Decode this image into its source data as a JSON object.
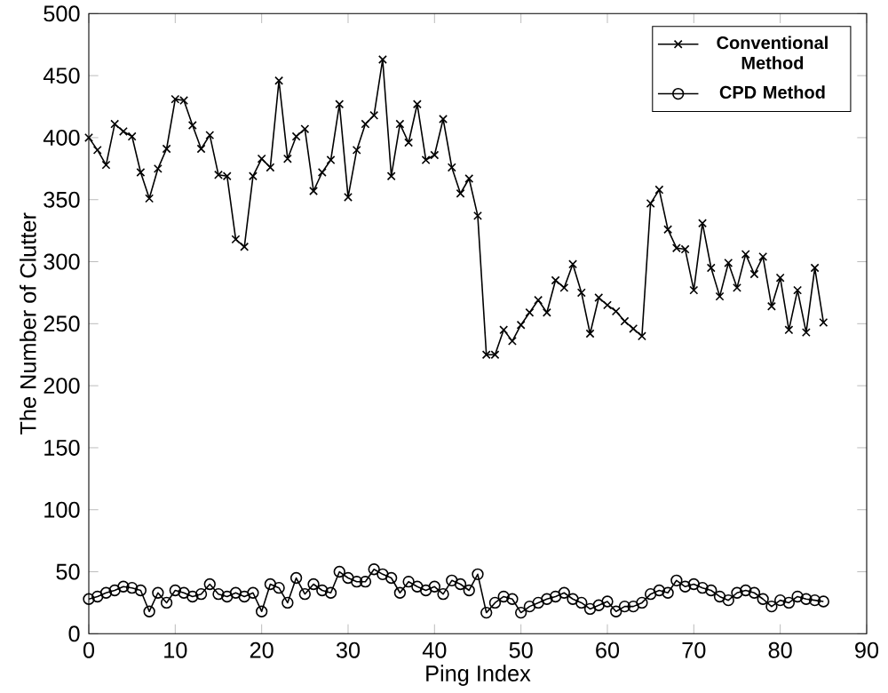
{
  "chart_data": {
    "type": "line",
    "xlabel": "Ping Index",
    "ylabel": "The Number of Clutter",
    "x": [
      0,
      1,
      2,
      3,
      4,
      5,
      6,
      7,
      8,
      9,
      10,
      11,
      12,
      13,
      14,
      15,
      16,
      17,
      18,
      19,
      20,
      21,
      22,
      23,
      24,
      25,
      26,
      27,
      28,
      29,
      30,
      31,
      32,
      33,
      34,
      35,
      36,
      37,
      38,
      39,
      40,
      41,
      42,
      43,
      44,
      45,
      46,
      47,
      48,
      49,
      50,
      51,
      52,
      53,
      54,
      55,
      56,
      57,
      58,
      59,
      60,
      61,
      62,
      63,
      64,
      65,
      66,
      67,
      68,
      69,
      70,
      71,
      72,
      73,
      74,
      75,
      76,
      77,
      78,
      79,
      80,
      81,
      82,
      83,
      84,
      85
    ],
    "series": [
      {
        "name": "Conventional Method",
        "color": "#000000",
        "marker": "cross",
        "values": [
          400,
          390,
          378,
          411,
          405,
          401,
          372,
          351,
          375,
          391,
          431,
          430,
          410,
          391,
          402,
          370,
          369,
          318,
          312,
          369,
          383,
          376,
          446,
          383,
          401,
          407,
          357,
          372,
          382,
          427,
          352,
          390,
          411,
          418,
          463,
          369,
          411,
          396,
          427,
          382,
          386,
          415,
          376,
          355,
          367,
          337,
          225,
          225,
          245,
          236,
          249,
          259,
          269,
          259,
          285,
          279,
          298,
          275,
          242,
          271,
          265,
          260,
          252,
          246,
          240,
          347,
          358,
          326,
          311,
          310,
          277,
          331,
          295,
          272,
          299,
          279,
          306,
          290,
          304,
          264,
          287,
          245,
          277,
          243,
          295,
          251
        ]
      },
      {
        "name": "CPD Method",
        "color": "#000000",
        "marker": "circle",
        "values": [
          28,
          30,
          33,
          35,
          38,
          37,
          35,
          18,
          33,
          25,
          35,
          33,
          30,
          32,
          40,
          32,
          30,
          33,
          30,
          33,
          18,
          40,
          37,
          25,
          45,
          32,
          40,
          35,
          33,
          50,
          45,
          42,
          42,
          52,
          48,
          45,
          33,
          42,
          38,
          35,
          38,
          32,
          43,
          40,
          35,
          48,
          17,
          25,
          30,
          28,
          17,
          22,
          25,
          28,
          30,
          33,
          28,
          25,
          20,
          23,
          26,
          18,
          22,
          22,
          25,
          32,
          35,
          33,
          43,
          38,
          40,
          37,
          35,
          30,
          27,
          33,
          35,
          33,
          28,
          22,
          27,
          25,
          30,
          28,
          27,
          26
        ]
      }
    ],
    "xlim": [
      0,
      90
    ],
    "xticks": [
      0,
      10,
      20,
      30,
      40,
      50,
      60,
      70,
      80,
      90
    ],
    "ylim": [
      0,
      500
    ],
    "yticks": [
      0,
      50,
      100,
      150,
      200,
      250,
      300,
      350,
      400,
      450,
      500
    ],
    "legend": "top right",
    "line_style": "solid"
  }
}
